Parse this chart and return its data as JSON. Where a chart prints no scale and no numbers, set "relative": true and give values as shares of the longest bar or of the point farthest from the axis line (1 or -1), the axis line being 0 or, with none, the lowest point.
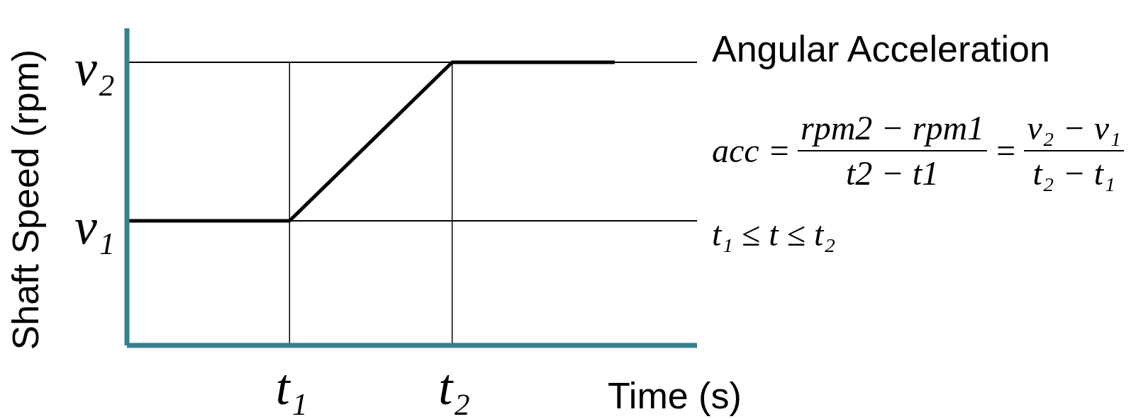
{
  "chart_data": {
    "type": "line",
    "xlabel": "Time (s)",
    "ylabel": "Shaft Speed (rpm)",
    "relative": true,
    "grid": "x",
    "categories": [
      null,
      "t₁",
      "t₂",
      null
    ],
    "series": [
      {
        "color": "#000000",
        "values": [
          0.44,
          0.44,
          1,
          1
        ]
      }
    ],
    "ref_lines": [
      {
        "axis": "y",
        "value": 0.44,
        "label": "v₁",
        "color": "#000000"
      },
      {
        "axis": "y",
        "value": 1,
        "label": "v₂",
        "color": "#000000"
      }
    ],
    "annotations": [
      "Angular Acceleration",
      "acc =",
      "rpm2 − rpm1",
      "t2 − t1",
      "=",
      "v₂ − v₁",
      "t₂ − t₁",
      "t₁ ≤ t ≤ t₂"
    ]
  }
}
